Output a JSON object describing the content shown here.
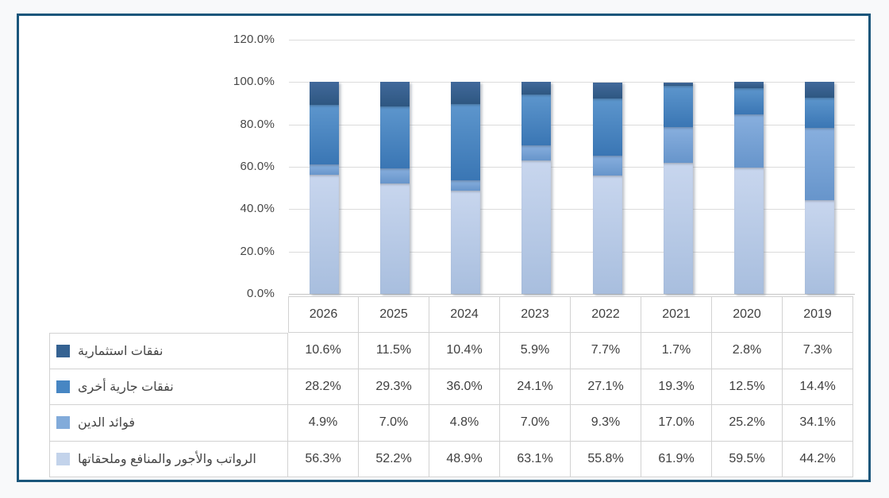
{
  "frame": {
    "border_color": "#1a567b",
    "background": "#ffffff",
    "page_background": "#f8f9fa"
  },
  "chart_data": {
    "type": "bar",
    "subtype": "stacked-100-percent",
    "title": "",
    "xlabel": "",
    "ylabel": "",
    "grid": true,
    "legend_position": "table-rows-left",
    "categories": [
      "2026",
      "2025",
      "2024",
      "2023",
      "2022",
      "2021",
      "2020",
      "2019"
    ],
    "y_axis": {
      "min": 0,
      "max": 120,
      "step": 20,
      "ticks": [
        "120.0%",
        "100.0%",
        "80.0%",
        "60.0%",
        "40.0%",
        "20.0%",
        "0.0%"
      ]
    },
    "stack_order": "last-series-at-bottom",
    "value_format": "one-decimal-percent",
    "series": [
      {
        "name": "نفقات استثمارية",
        "values": [
          10.6,
          11.5,
          10.4,
          5.9,
          7.7,
          1.7,
          2.8,
          7.3
        ],
        "color_top": "#41699b",
        "color_bottom": "#2e5781",
        "swatch": "#356292"
      },
      {
        "name": "نفقات جارية أخرى",
        "values": [
          28.2,
          29.3,
          36.0,
          24.1,
          27.1,
          19.3,
          12.5,
          14.4
        ],
        "color_top": "#5d96cd",
        "color_bottom": "#3a76b4",
        "swatch": "#4786c3"
      },
      {
        "name": "فوائد الدين",
        "values": [
          4.9,
          7.0,
          4.8,
          7.0,
          9.3,
          17.0,
          25.2,
          34.1
        ],
        "color_top": "#88afde",
        "color_bottom": "#6795cb",
        "swatch": "#82abda"
      },
      {
        "name": "الرواتب والأجور والمنافع وملحقاتها",
        "values": [
          56.3,
          52.2,
          48.9,
          63.1,
          55.8,
          61.9,
          59.5,
          44.2
        ],
        "color_top": "#c8d6ee",
        "color_bottom": "#a8bede",
        "swatch": "#c3d3eb"
      }
    ],
    "colors": {
      "gridline": "#dbdbdb",
      "axis_line": "#c5c5c5",
      "table_border": "#d2d2d2",
      "text": "#3f3f3f"
    }
  }
}
